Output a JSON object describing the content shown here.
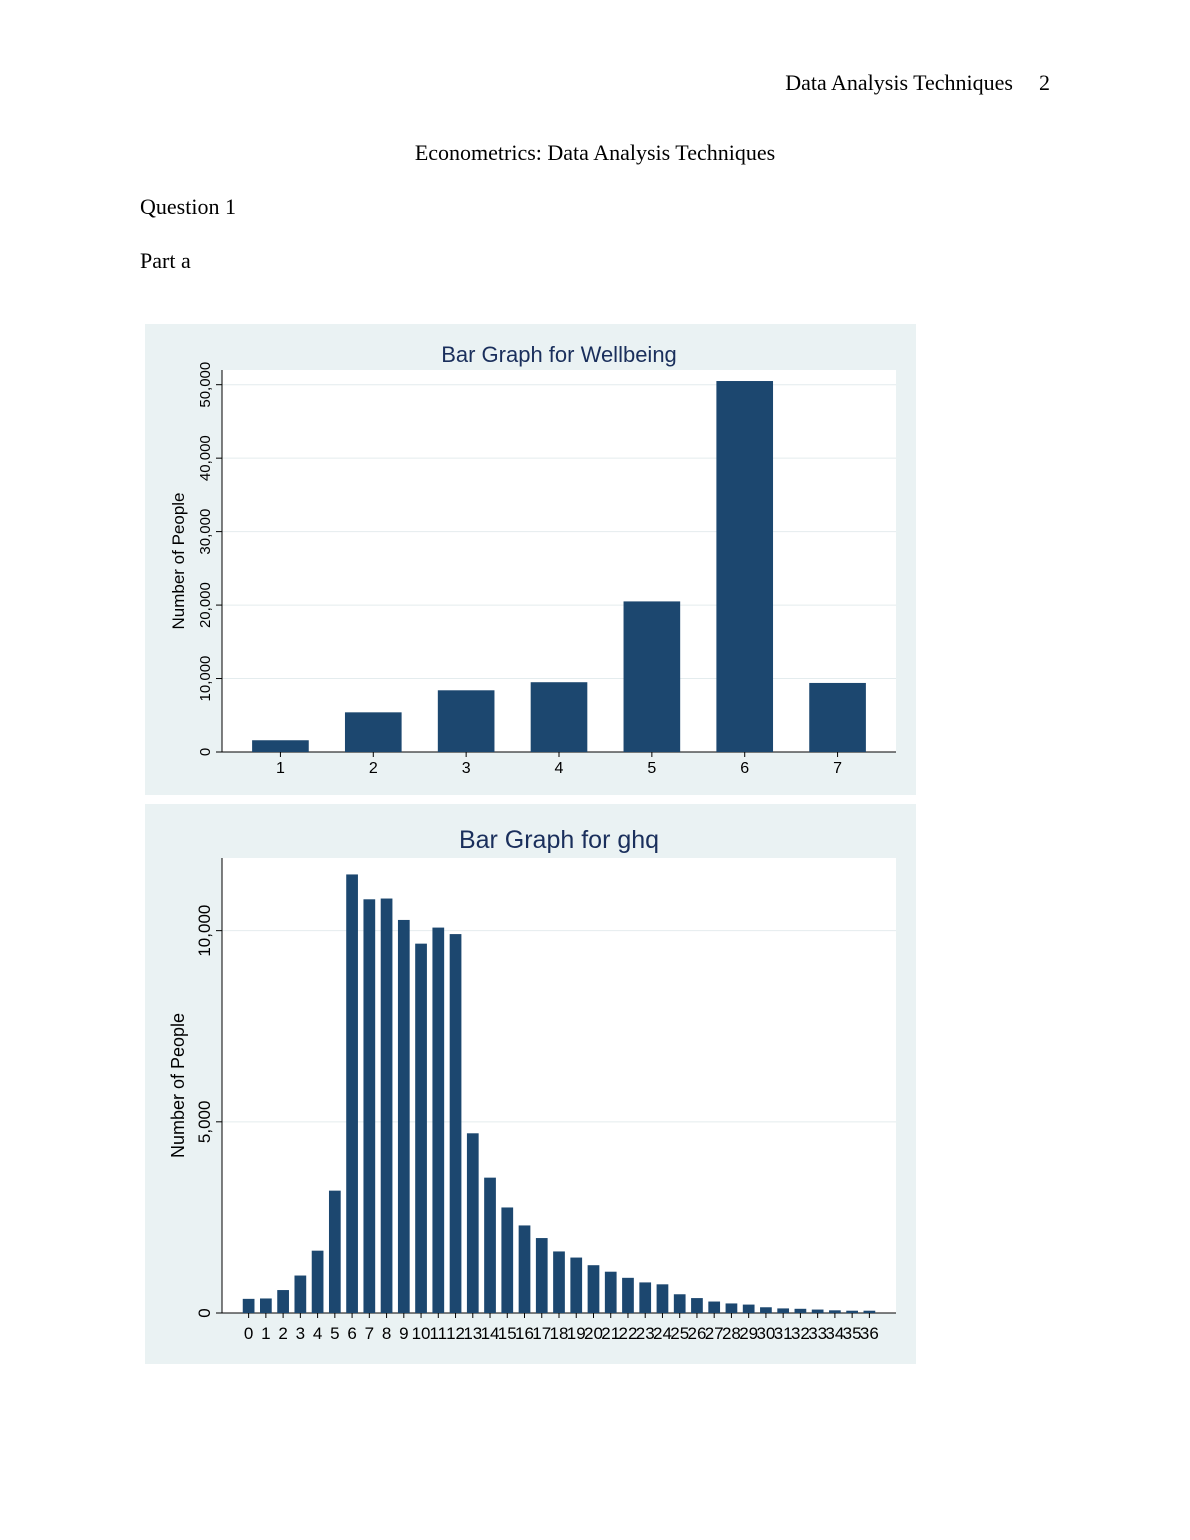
{
  "header": {
    "running_title": "Data Analysis Techniques",
    "page_number": "2"
  },
  "document": {
    "title": "Econometrics: Data Analysis Techniques",
    "question": "Question 1",
    "part": "Part a"
  },
  "colors": {
    "bar": "#1c476f",
    "panel": "#eaf2f3",
    "plot": "#ffffff",
    "grid": "#e4ecee",
    "title": "#1a2f5c"
  },
  "chart_data": [
    {
      "type": "bar",
      "title": "Bar Graph for Wellbeing",
      "xlabel": "",
      "ylabel": "Number of People",
      "categories": [
        "1",
        "2",
        "3",
        "4",
        "5",
        "6",
        "7"
      ],
      "values": [
        1600,
        5400,
        8400,
        9500,
        20500,
        50500,
        9400
      ],
      "ylim": [
        0,
        52000
      ],
      "yticks": [
        0,
        10000,
        20000,
        30000,
        40000,
        50000
      ],
      "ytick_labels": [
        "0",
        "10,000",
        "20,000",
        "30,000",
        "40,000",
        "50,000"
      ],
      "grid": true
    },
    {
      "type": "bar",
      "title": "Bar Graph for ghq",
      "xlabel": "",
      "ylabel": "Number of People",
      "categories": [
        "0",
        "1",
        "2",
        "3",
        "4",
        "5",
        "6",
        "7",
        "8",
        "9",
        "10",
        "11",
        "12",
        "13",
        "14",
        "15",
        "16",
        "17",
        "18",
        "19",
        "20",
        "21",
        "22",
        "23",
        "24",
        "25",
        "26",
        "27",
        "28",
        "29",
        "30",
        "31",
        "32",
        "33",
        "34",
        "35",
        "36"
      ],
      "values": [
        370,
        380,
        600,
        980,
        1630,
        3200,
        11470,
        10820,
        10840,
        10280,
        9660,
        10080,
        9910,
        4700,
        3540,
        2760,
        2290,
        1960,
        1610,
        1450,
        1250,
        1080,
        920,
        800,
        750,
        490,
        390,
        300,
        250,
        220,
        150,
        120,
        110,
        90,
        70,
        60,
        60
      ],
      "ylim": [
        0,
        11900
      ],
      "yticks": [
        0,
        5000,
        10000
      ],
      "ytick_labels": [
        "0",
        "5,000",
        "10,000"
      ],
      "grid": true
    }
  ]
}
